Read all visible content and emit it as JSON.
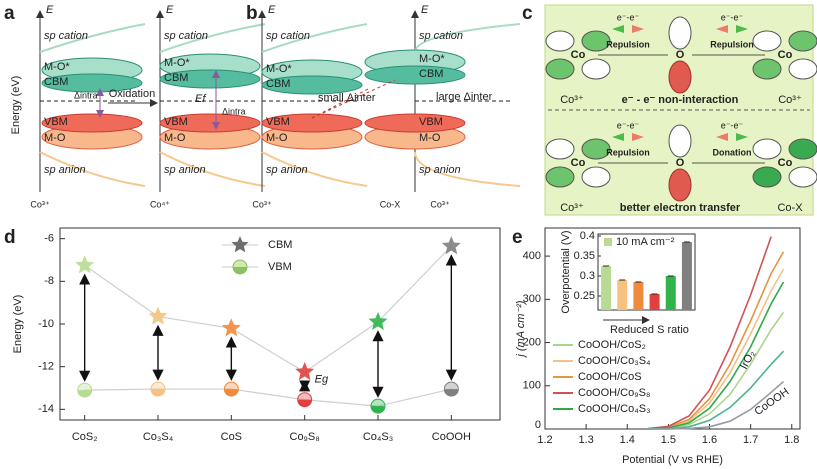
{
  "panel_a": {
    "label": "a",
    "axis_label": "Energy (eV)",
    "left": {
      "e": "E",
      "sp_cation": "sp cation",
      "mo_star": "M-O*",
      "cbm": "CBM",
      "vbm": "VBM",
      "mo": "M-O",
      "sp_anion": "sp anion",
      "delta": "Δintra",
      "ion": "Co³⁺"
    },
    "arrow": "Oxidation",
    "right": {
      "e": "E",
      "sp_cation": "sp cation",
      "mo_star": "M-O*",
      "cbm": "CBM",
      "vbm": "VBM",
      "mo": "M-O",
      "sp_anion": "sp anion",
      "ef": "Ef",
      "delta": "Δintra",
      "ion": "Co⁴⁺"
    }
  },
  "panel_b": {
    "label": "b",
    "left": {
      "e": "E",
      "sp_cation": "sp cation",
      "mo_star": "M-O*",
      "cbm": "CBM",
      "vbm": "VBM",
      "mo": "M-O",
      "sp_anion": "sp anion",
      "ion": "Co³⁺"
    },
    "small": "small Δinter",
    "large": "large Δinter",
    "right": {
      "e": "E",
      "sp_cation": "sp cation",
      "mo_star": "M-O*",
      "cbm": "CBM",
      "vbm": "VBM",
      "mo": "M-O",
      "sp_anion": "sp anion",
      "ion": "Co-X",
      "ion2": "Co³⁺"
    }
  },
  "panel_c": {
    "label": "c",
    "top": {
      "co_left": "Co",
      "o": "O",
      "co_right": "Co",
      "e1": "e⁻-e⁻",
      "e2": "e⁻-e⁻",
      "mid1": "Repulsion",
      "mid2": "Repulsion",
      "ion_left": "Co³⁺",
      "caption": "e⁻ - e⁻ non-interaction",
      "ion_right": "Co³⁺"
    },
    "bottom": {
      "co_left": "Co",
      "o": "O",
      "co_right": "Co",
      "e1": "e⁻-e⁻",
      "e2": "e⁻-e⁻",
      "mid1": "Repulsion",
      "mid2": "Donation",
      "ion_left": "Co³⁺",
      "caption": "better electron transfer",
      "ion_right": "Co-X"
    }
  },
  "chart_data": [
    {
      "type": "scatter",
      "label": "d",
      "ylabel": "Energy (eV)",
      "categories": [
        "CoS₂",
        "Co₃S₄",
        "CoS",
        "Co₉S₈",
        "Co₄S₃",
        "CoOOH"
      ],
      "colors": [
        "#b7db92",
        "#f6c27f",
        "#f08a3c",
        "#e0403f",
        "#2fb34a",
        "#808080"
      ],
      "series": [
        {
          "name": "CBM",
          "color": "#6e6e6e",
          "values": [
            -7.25,
            -9.65,
            -10.2,
            -12.25,
            -9.9,
            -6.35
          ]
        },
        {
          "name": "VBM",
          "color": "#6e6e6e",
          "values": [
            -13.1,
            -13.05,
            -13.05,
            -13.55,
            -13.85,
            -13.05
          ]
        }
      ],
      "annotation": "Eg",
      "ylim": [
        -14.5,
        -5.5
      ],
      "yticks": [
        -6,
        -8,
        -10,
        -12,
        -14
      ]
    },
    {
      "type": "line",
      "label": "e",
      "xlabel": "Potential (V vs RHE)",
      "ylabel": "j (mA cm⁻²)",
      "x": [
        1.45,
        1.5,
        1.55,
        1.6,
        1.65,
        1.7,
        1.75,
        1.78
      ],
      "series": [
        {
          "name": "CoOOH/CoS₂",
          "color": "#a9d68c",
          "values": [
            0,
            1,
            10,
            35,
            80,
            150,
            230,
            270
          ],
          "legend": true
        },
        {
          "name": "CoOOH/Co₃S₄",
          "color": "#f3c189",
          "values": [
            0,
            3,
            18,
            60,
            130,
            220,
            320,
            370
          ],
          "legend": true
        },
        {
          "name": "CoOOH/CoS",
          "color": "#e6953f",
          "values": [
            0,
            4,
            22,
            70,
            150,
            250,
            360,
            410
          ],
          "legend": true
        },
        {
          "name": "CoOOH/Co₉S₈",
          "color": "#cf5255",
          "values": [
            1,
            6,
            30,
            90,
            190,
            310,
            445,
            null
          ],
          "legend": true
        },
        {
          "name": "CoOOH/Co₄S₃",
          "color": "#2faa4a",
          "values": [
            0,
            2,
            14,
            48,
            110,
            190,
            290,
            340
          ],
          "legend": true
        },
        {
          "name": "IrO₂",
          "color": "#4db38c",
          "values": [
            0,
            0,
            5,
            20,
            50,
            95,
            150,
            180
          ],
          "legend": false
        },
        {
          "name": "CoOOH",
          "color": "#9a9aa8",
          "values": [
            0,
            0,
            1,
            5,
            18,
            45,
            85,
            110
          ],
          "legend": false
        }
      ],
      "xlim": [
        1.2,
        1.82
      ],
      "xticks": [
        1.2,
        1.3,
        1.4,
        1.5,
        1.6,
        1.7,
        1.8
      ],
      "ylim": [
        0,
        465
      ],
      "yticks": [
        0,
        100,
        200,
        300,
        400
      ]
    },
    {
      "type": "bar",
      "ylabel": "Overpotential (V)",
      "xlabel": "Reduced S ratio",
      "legend": "10 mA cm⁻²",
      "categories": [
        null,
        null,
        null,
        null,
        null,
        null
      ],
      "values": [
        0.325,
        0.29,
        0.285,
        0.255,
        0.3,
        0.385
      ],
      "colors": [
        "#b7db92",
        "#f6c27f",
        "#f08a3c",
        "#e0403f",
        "#2fb34a",
        "#808080"
      ],
      "ylim": [
        0.215,
        0.405
      ],
      "yticks": [
        0.25,
        0.3,
        0.35,
        0.4
      ]
    }
  ]
}
